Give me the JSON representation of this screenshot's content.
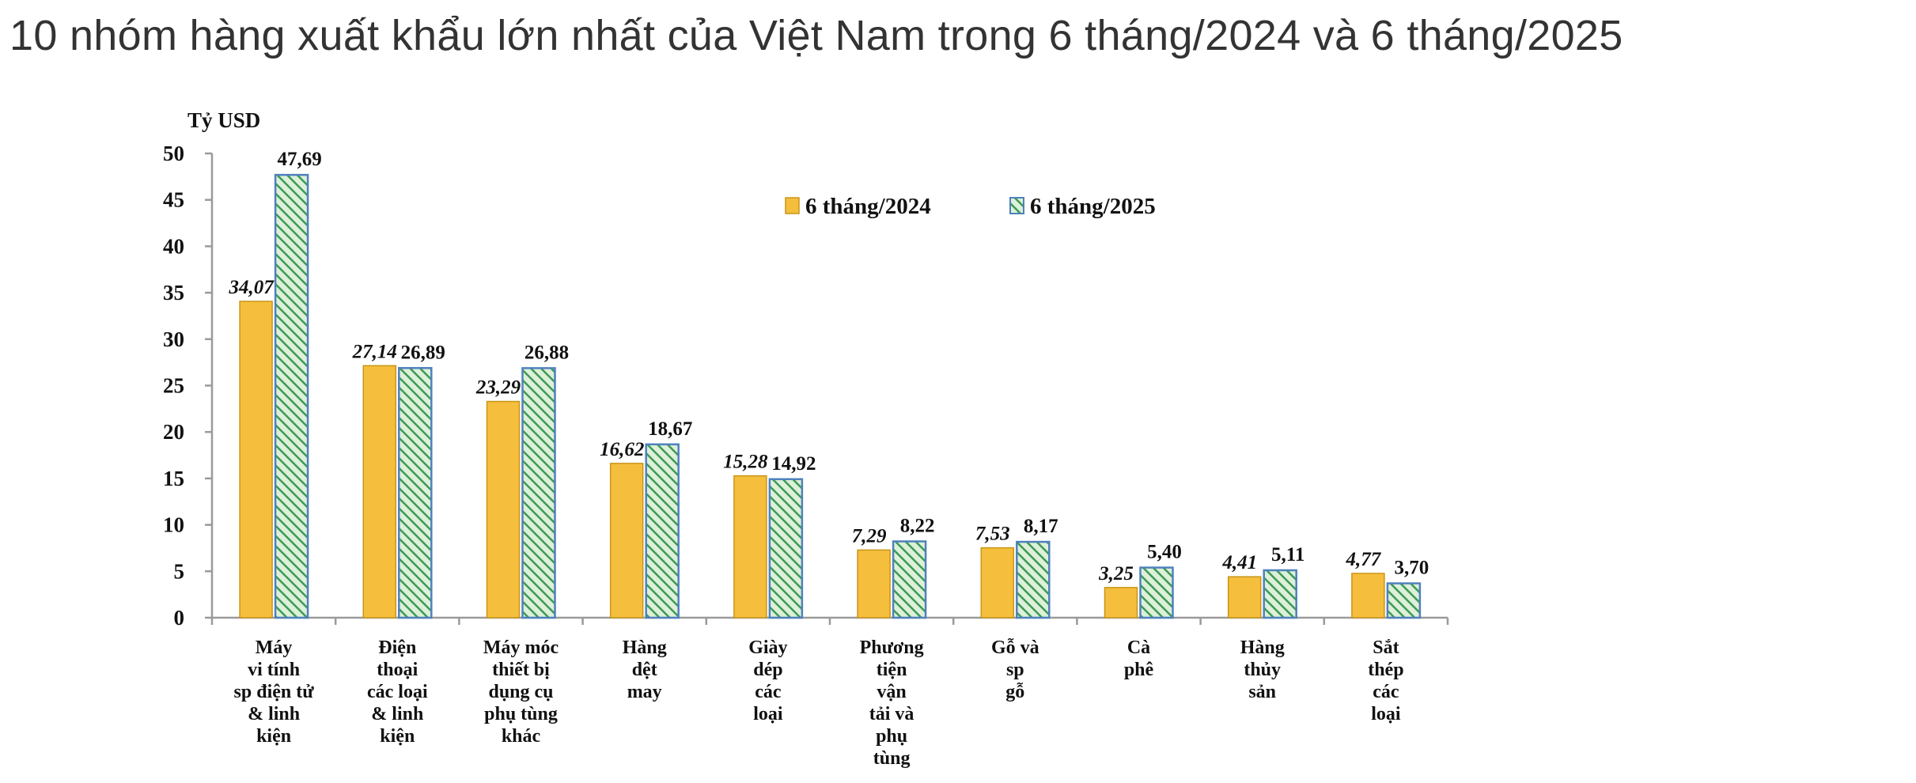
{
  "page": {
    "title": "10 nhóm hàng xuất khẩu lớn nhất của Việt Nam trong 6 tháng/2024 và 6 tháng/2025"
  },
  "colors": {
    "series_2024_fill": "#F5BE3C",
    "series_2024_stroke": "#C89618",
    "series_2025_fill": "#DDF0DA",
    "series_2025_stripe": "#3D9A53",
    "series_2025_stroke": "#4F81BD",
    "axis": "#9A9A9A",
    "text": "#111111"
  },
  "chart_data": {
    "type": "bar",
    "title": "",
    "ylabel": "Tỷ USD",
    "xlabel": "",
    "ylim": [
      0,
      50
    ],
    "yticks": [
      0,
      5,
      10,
      15,
      20,
      25,
      30,
      35,
      40,
      45,
      50
    ],
    "grid": false,
    "legend_position": "top-center",
    "categories": [
      [
        "Máy",
        "vi tính",
        "sp điện tử",
        "& linh",
        "kiện"
      ],
      [
        "Điện",
        "thoại",
        "các loại",
        "& linh",
        "kiện"
      ],
      [
        "Máy móc",
        "thiết bị",
        "dụng cụ",
        "phụ tùng",
        "khác"
      ],
      [
        "Hàng",
        "dệt",
        "may"
      ],
      [
        "Giày",
        "dép",
        "các",
        "loại"
      ],
      [
        "Phương",
        "tiện",
        "vận",
        "tải và",
        "phụ",
        "tùng"
      ],
      [
        "Gỗ và",
        "sp",
        "gỗ"
      ],
      [
        "Cà",
        "phê"
      ],
      [
        "Hàng",
        "thủy",
        "sản"
      ],
      [
        "Sắt",
        "thép",
        "các",
        "loại"
      ]
    ],
    "series": [
      {
        "name": "6 tháng/2024",
        "values": [
          34.07,
          27.14,
          23.29,
          16.62,
          15.28,
          7.29,
          7.53,
          3.25,
          4.41,
          4.77
        ],
        "labels": [
          "34,07",
          "27,14",
          "23,29",
          "16,62",
          "15,28",
          "7,29",
          "7,53",
          "3,25",
          "4,41",
          "4,77"
        ]
      },
      {
        "name": "6 tháng/2025",
        "values": [
          47.69,
          26.89,
          26.88,
          18.67,
          14.92,
          8.22,
          8.17,
          5.4,
          5.11,
          3.7
        ],
        "labels": [
          "47,69",
          "26,89",
          "26,88",
          "18,67",
          "14,92",
          "8,22",
          "8,17",
          "5,40",
          "5,11",
          "3,70"
        ]
      }
    ]
  }
}
